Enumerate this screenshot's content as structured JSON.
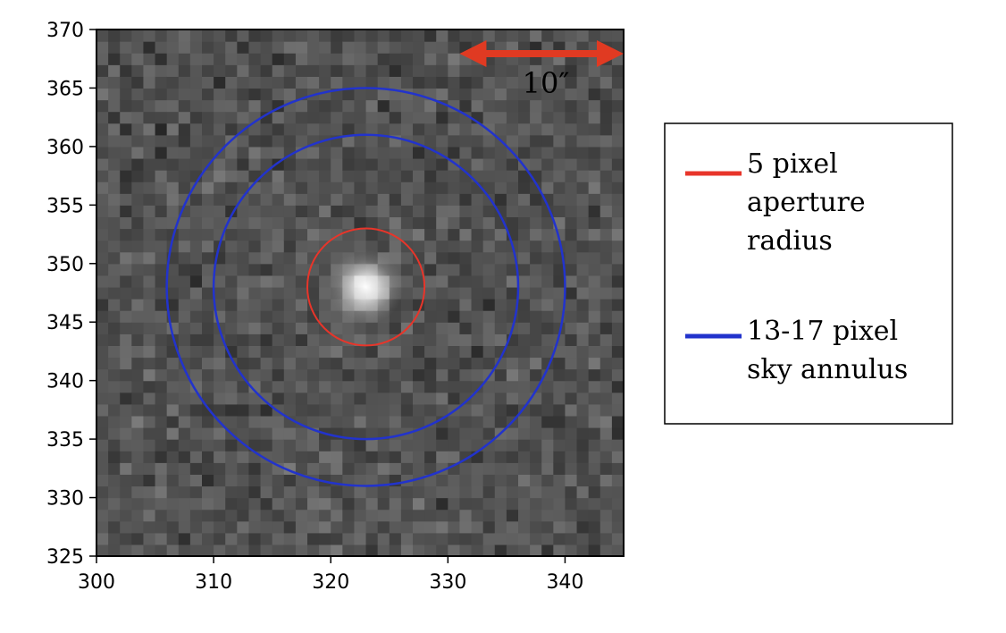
{
  "chart_data": {
    "type": "heatmap",
    "title": "",
    "xlabel": "",
    "ylabel": "",
    "xlim": [
      300,
      345
    ],
    "ylim": [
      325,
      370
    ],
    "x_ticks": [
      "300",
      "310",
      "320",
      "330",
      "340"
    ],
    "y_ticks": [
      "325",
      "330",
      "335",
      "340",
      "345",
      "350",
      "355",
      "360",
      "365",
      "370"
    ],
    "colormap": "grayscale",
    "grid": false,
    "source_center": {
      "x": 323,
      "y": 348
    },
    "apertures": [
      {
        "name": "5 pixel aperture radius",
        "radius": 5,
        "color": "#e8352a"
      },
      {
        "name": "13-17 pixel sky annulus",
        "inner_radius": 13,
        "outer_radius": 17,
        "color": "#2233cc"
      }
    ],
    "scale_bar": {
      "label": "10″",
      "from_x": 331,
      "to_x": 345,
      "color": "#e03a22"
    },
    "legend": {
      "placement": "right",
      "entries": [
        {
          "lines": [
            "5 pixel",
            "aperture",
            "radius"
          ],
          "color": "#e8352a"
        },
        {
          "lines": [
            "13-17 pixel",
            "sky annulus"
          ],
          "color": "#2233cc"
        }
      ]
    }
  }
}
